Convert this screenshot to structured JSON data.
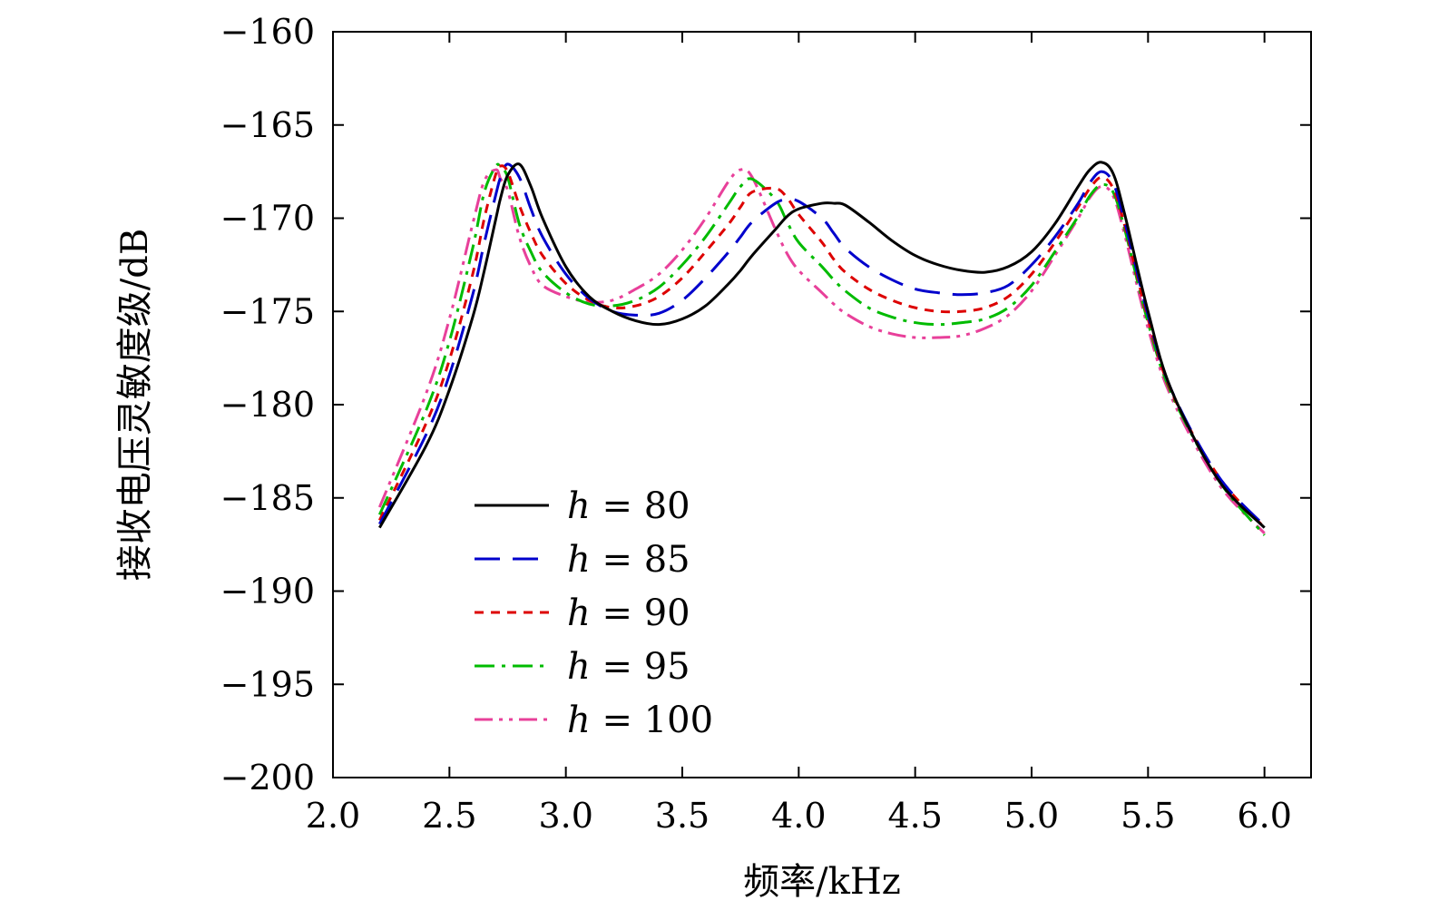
{
  "chart_data": {
    "type": "line",
    "xlabel": "频率/kHz",
    "ylabel": "接收电压灵敏度级/dB",
    "xlim": [
      2.0,
      6.2
    ],
    "ylim": [
      -200,
      -160
    ],
    "x_ticks": [
      "2.0",
      "2.5",
      "3.0",
      "3.5",
      "4.0",
      "4.5",
      "5.0",
      "5.5",
      "6.0"
    ],
    "x_tick_values": [
      2.0,
      2.5,
      3.0,
      3.5,
      4.0,
      4.5,
      5.0,
      5.5,
      6.0
    ],
    "y_ticks": [
      "−160",
      "−165",
      "−170",
      "−175",
      "−180",
      "−185",
      "−190",
      "−195",
      "−200"
    ],
    "y_tick_values": [
      -160,
      -165,
      -170,
      -175,
      -180,
      -185,
      -190,
      -195,
      -200
    ],
    "grid": false,
    "legend_position": "bottom-left",
    "x": [
      2.2,
      2.4,
      2.5,
      2.6,
      2.65,
      2.7,
      2.72,
      2.75,
      2.8,
      2.85,
      2.9,
      3.0,
      3.1,
      3.2,
      3.3,
      3.4,
      3.5,
      3.6,
      3.7,
      3.75,
      3.8,
      3.9,
      3.95,
      4.0,
      4.1,
      4.15,
      4.2,
      4.3,
      4.4,
      4.5,
      4.6,
      4.7,
      4.8,
      4.9,
      5.0,
      5.1,
      5.2,
      5.25,
      5.3,
      5.35,
      5.4,
      5.5,
      5.6,
      5.8,
      6.0
    ],
    "series": [
      {
        "name": "h = 80",
        "color": "#000000",
        "dash": "solid",
        "values": [
          -186.6,
          -182.2,
          -179.2,
          -175.3,
          -172.8,
          -170.0,
          -168.9,
          -167.7,
          -167.1,
          -168.3,
          -170.0,
          -172.6,
          -174.2,
          -175.0,
          -175.5,
          -175.7,
          -175.4,
          -174.7,
          -173.5,
          -172.8,
          -172.0,
          -170.6,
          -169.9,
          -169.5,
          -169.2,
          -169.2,
          -169.3,
          -170.2,
          -171.2,
          -172.0,
          -172.5,
          -172.8,
          -172.9,
          -172.6,
          -171.8,
          -170.3,
          -168.3,
          -167.4,
          -167.0,
          -167.6,
          -169.8,
          -175.0,
          -179.2,
          -184.0,
          -186.6
        ]
      },
      {
        "name": "h = 85",
        "color": "#0000cc",
        "dash": "long-dash",
        "values": [
          -186.4,
          -181.6,
          -178.4,
          -174.1,
          -171.3,
          -168.7,
          -167.8,
          -167.1,
          -167.8,
          -169.5,
          -171.0,
          -173.0,
          -174.3,
          -175.0,
          -175.2,
          -175.1,
          -174.4,
          -173.2,
          -171.8,
          -171.0,
          -170.2,
          -169.2,
          -169.0,
          -169.1,
          -170.0,
          -170.8,
          -171.6,
          -172.6,
          -173.3,
          -173.8,
          -174.0,
          -174.1,
          -174.0,
          -173.6,
          -172.5,
          -171.0,
          -169.2,
          -168.1,
          -167.5,
          -168.1,
          -170.2,
          -175.2,
          -179.2,
          -183.8,
          -186.5
        ]
      },
      {
        "name": "h = 90",
        "color": "#dd0000",
        "dash": "short-dash",
        "values": [
          -186.2,
          -181.0,
          -177.6,
          -173.0,
          -170.0,
          -167.6,
          -167.2,
          -167.5,
          -169.3,
          -170.8,
          -172.0,
          -173.5,
          -174.4,
          -174.8,
          -174.7,
          -174.2,
          -173.2,
          -171.8,
          -170.3,
          -169.4,
          -168.6,
          -168.4,
          -168.9,
          -169.8,
          -171.3,
          -172.2,
          -172.9,
          -173.8,
          -174.4,
          -174.8,
          -175.0,
          -175.0,
          -174.8,
          -174.2,
          -173.0,
          -171.3,
          -169.4,
          -168.4,
          -167.8,
          -168.4,
          -170.4,
          -175.4,
          -179.3,
          -183.8,
          -186.6
        ]
      },
      {
        "name": "h = 95",
        "color": "#00bb00",
        "dash": "dash-dot",
        "values": [
          -185.9,
          -180.3,
          -176.6,
          -171.6,
          -168.6,
          -167.2,
          -167.3,
          -167.8,
          -170.3,
          -171.8,
          -172.9,
          -174.0,
          -174.6,
          -174.7,
          -174.4,
          -173.7,
          -172.5,
          -171.0,
          -169.2,
          -168.3,
          -167.9,
          -169.0,
          -170.2,
          -171.3,
          -172.6,
          -173.3,
          -173.9,
          -174.8,
          -175.3,
          -175.6,
          -175.7,
          -175.6,
          -175.4,
          -174.8,
          -173.6,
          -171.8,
          -169.9,
          -168.8,
          -168.2,
          -168.6,
          -170.6,
          -175.6,
          -179.4,
          -184.0,
          -187.0
        ]
      },
      {
        "name": "h = 100",
        "color": "#e8409a",
        "dash": "dash-dot-dot",
        "values": [
          -185.5,
          -179.4,
          -175.4,
          -170.3,
          -168.0,
          -167.4,
          -167.9,
          -168.5,
          -171.0,
          -172.6,
          -173.6,
          -174.2,
          -174.5,
          -174.4,
          -173.8,
          -173.0,
          -171.7,
          -170.0,
          -168.0,
          -167.4,
          -167.8,
          -170.6,
          -171.9,
          -172.8,
          -174.0,
          -174.6,
          -175.1,
          -175.8,
          -176.2,
          -176.4,
          -176.4,
          -176.3,
          -175.9,
          -175.2,
          -173.9,
          -172.0,
          -170.0,
          -168.9,
          -168.3,
          -168.8,
          -170.9,
          -175.9,
          -179.6,
          -184.2,
          -186.9
        ]
      }
    ]
  }
}
